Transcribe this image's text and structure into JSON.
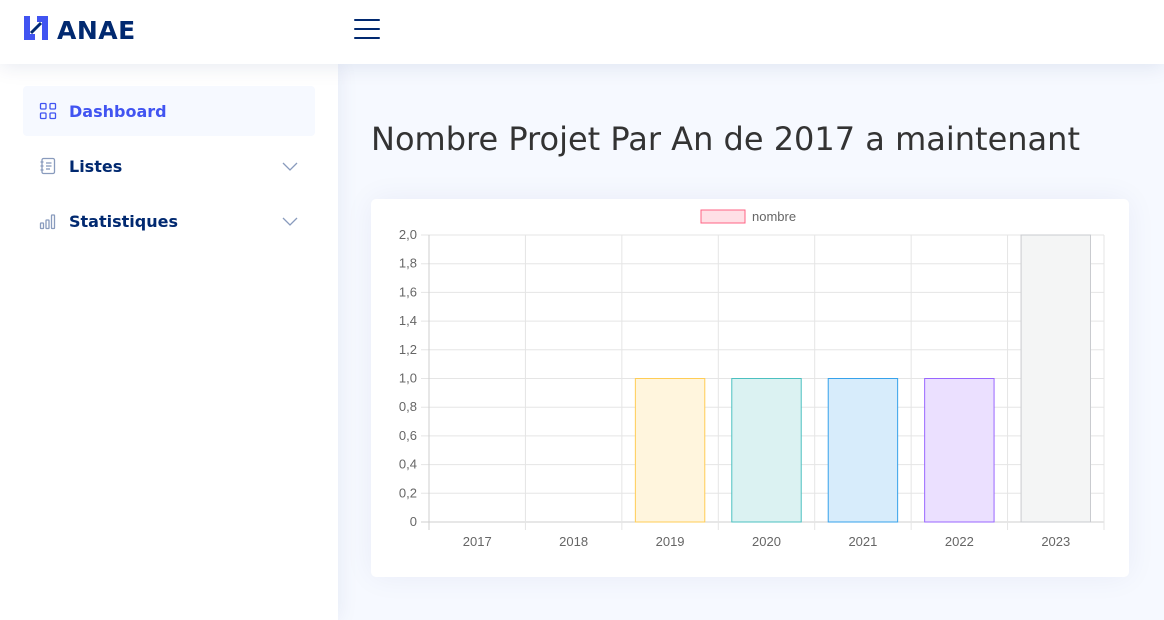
{
  "brand": {
    "name": "ANAE",
    "logo_icon": "anae-logo-icon"
  },
  "header": {
    "menu_icon": "hamburger-menu-icon"
  },
  "sidebar": {
    "items": [
      {
        "label": "Dashboard",
        "icon": "grid-icon",
        "active": true
      },
      {
        "label": "Listes",
        "icon": "journal-text-icon",
        "expandable": true
      },
      {
        "label": "Statistiques",
        "icon": "bar-chart-icon",
        "expandable": true
      }
    ]
  },
  "main": {
    "title": "Nombre Projet Par An de 2017 a maintenant"
  },
  "chart_data": {
    "type": "bar",
    "categories": [
      "2017",
      "2018",
      "2019",
      "2020",
      "2021",
      "2022",
      "2023"
    ],
    "series": [
      {
        "name": "nombre",
        "values": [
          0,
          0,
          1,
          1,
          1,
          1,
          2
        ],
        "fill_colors": [
          "#ffe0e6",
          "#ffecd9",
          "#fff5dd",
          "#dbf2f2",
          "#d7ecfb",
          "#ebe0ff",
          "#f4f5f5"
        ],
        "border_colors": [
          "#ff6384",
          "#ff9f40",
          "#ffcd56",
          "#4bc0c0",
          "#36a2eb",
          "#9966ff",
          "#c9cbcf"
        ]
      }
    ],
    "yticks": [
      "0",
      "0,2",
      "0,4",
      "0,6",
      "0,8",
      "1,0",
      "1,2",
      "1,4",
      "1,6",
      "1,8",
      "2,0"
    ],
    "ylim": [
      0,
      2
    ],
    "grid": true,
    "legend_position": "top"
  },
  "colors": {
    "accent": "#4154f1",
    "nav_text": "#012970",
    "title_text": "#333333",
    "background": "#f6f9ff"
  }
}
